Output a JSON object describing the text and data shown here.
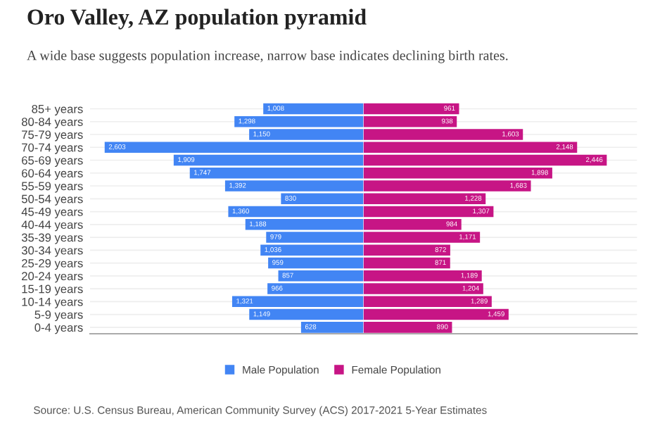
{
  "chart_data": [
    {
      "type": "bar",
      "orientation": "horizontal",
      "title": "Oro Valley, AZ population pyramid",
      "subtitle": "A wide base suggests population increase, narrow base indicates declining birth rates.",
      "categories": [
        "85+ years",
        "80-84 years",
        "75-79 years",
        "70-74 years",
        "65-69 years",
        "60-64 years",
        "55-59 years",
        "50-54 years",
        "45-49 years",
        "40-44 years",
        "35-39 years",
        "30-34 years",
        "25-29 years",
        "20-24 years",
        "15-19 years",
        "10-14 years",
        "5-9 years",
        "0-4 years"
      ],
      "series": [
        {
          "name": "Male Population",
          "color": "#4285f4",
          "values": [
            1008,
            1298,
            1150,
            2603,
            1909,
            1747,
            1392,
            830,
            1360,
            1188,
            979,
            1036,
            959,
            857,
            966,
            1321,
            1149,
            628
          ],
          "value_labels": [
            "1,008",
            "1,298",
            "1,150",
            "2,603",
            "1,909",
            "1,747",
            "1,392",
            "830",
            "1,360",
            "1,188",
            "979",
            "1,036",
            "959",
            "857",
            "966",
            "1,321",
            "1,149",
            "628"
          ]
        }
      ],
      "xlim": [
        2750,
        0
      ],
      "tick_labels": "y",
      "grid": "y",
      "legend": "bottom",
      "annotations": [
        "Source: U.S. Census Bureau, American Community Survey (ACS) 2017-2021 5-Year Estimates"
      ]
    },
    {
      "type": "bar",
      "orientation": "horizontal",
      "categories": [
        null,
        null,
        null,
        null,
        null,
        null,
        null,
        null,
        null,
        null,
        null,
        null,
        null,
        null,
        null,
        null,
        null,
        null
      ],
      "series": [
        {
          "name": "Female Population",
          "color": "#c71585",
          "values": [
            961,
            938,
            1603,
            2148,
            2446,
            1898,
            1683,
            1228,
            1307,
            984,
            1171,
            872,
            871,
            1189,
            1204,
            1289,
            1459,
            890
          ],
          "value_labels": [
            "961",
            "938",
            "1,603",
            "2,148",
            "2,446",
            "1,898",
            "1,683",
            "1,228",
            "1,307",
            "984",
            "1,171",
            "872",
            "871",
            "1,189",
            "1,204",
            "1,289",
            "1,459",
            "890"
          ]
        }
      ],
      "xlim": [
        0,
        2750
      ],
      "tick_labels": false,
      "grid": "y",
      "legend": "bottom"
    }
  ]
}
